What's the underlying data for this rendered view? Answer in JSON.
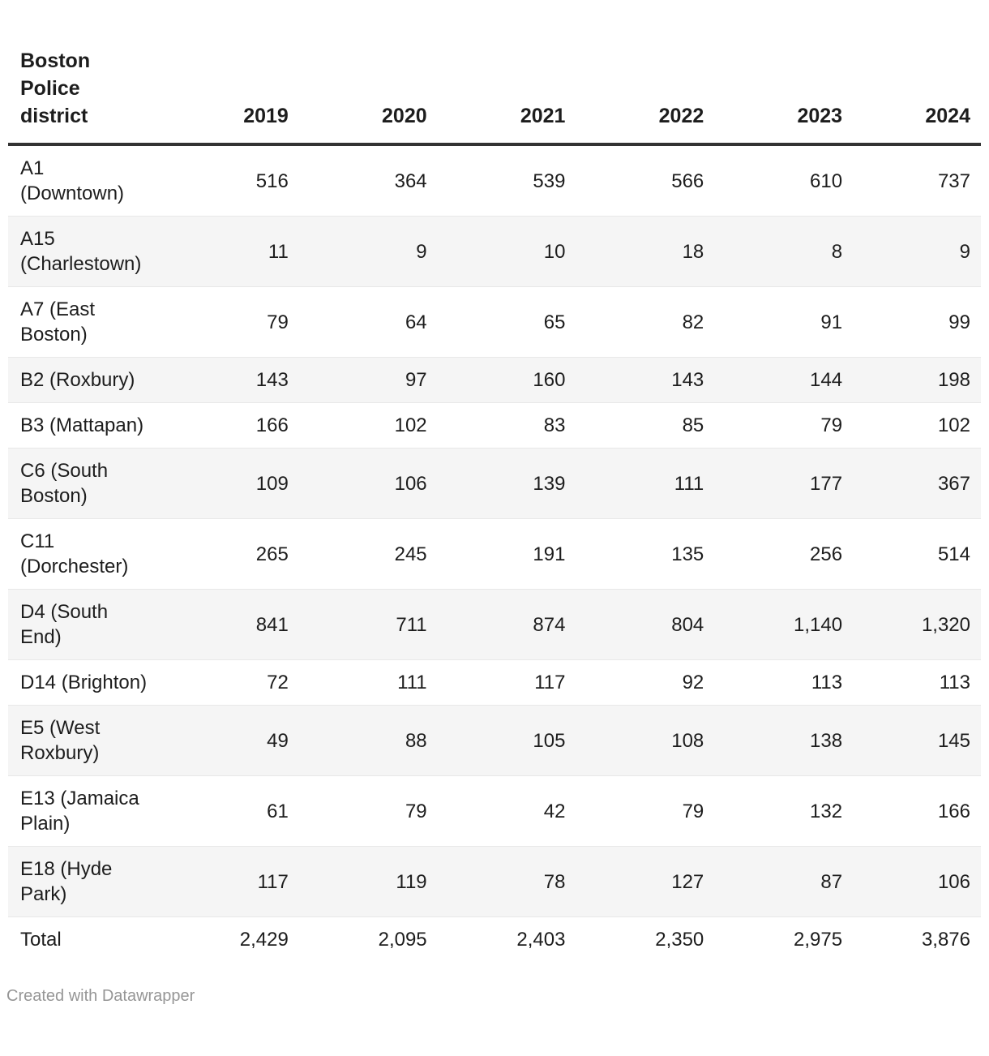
{
  "table": {
    "header": {
      "district_label": "Boston Police district",
      "years": [
        "2019",
        "2020",
        "2021",
        "2022",
        "2023",
        "2024"
      ]
    },
    "rows": [
      {
        "district": "A1 (Downtown)",
        "values": [
          "516",
          "364",
          "539",
          "566",
          "610",
          "737"
        ]
      },
      {
        "district": "A15 (Charlestown)",
        "values": [
          "11",
          "9",
          "10",
          "18",
          "8",
          "9"
        ]
      },
      {
        "district": "A7 (East Boston)",
        "values": [
          "79",
          "64",
          "65",
          "82",
          "91",
          "99"
        ]
      },
      {
        "district": "B2 (Roxbury)",
        "values": [
          "143",
          "97",
          "160",
          "143",
          "144",
          "198"
        ]
      },
      {
        "district": "B3 (Mattapan)",
        "values": [
          "166",
          "102",
          "83",
          "85",
          "79",
          "102"
        ]
      },
      {
        "district": "C6 (South Boston)",
        "values": [
          "109",
          "106",
          "139",
          "111",
          "177",
          "367"
        ]
      },
      {
        "district": "C11 (Dorchester)",
        "values": [
          "265",
          "245",
          "191",
          "135",
          "256",
          "514"
        ]
      },
      {
        "district": "D4 (South End)",
        "values": [
          "841",
          "711",
          "874",
          "804",
          "1,140",
          "1,320"
        ]
      },
      {
        "district": "D14 (Brighton)",
        "values": [
          "72",
          "111",
          "117",
          "92",
          "113",
          "113"
        ]
      },
      {
        "district": "E5 (West Roxbury)",
        "values": [
          "49",
          "88",
          "105",
          "108",
          "138",
          "145"
        ]
      },
      {
        "district": "E13 (Jamaica Plain)",
        "values": [
          "61",
          "79",
          "42",
          "79",
          "132",
          "166"
        ]
      },
      {
        "district": "E18 (Hyde Park)",
        "values": [
          "117",
          "119",
          "78",
          "127",
          "87",
          "106"
        ]
      },
      {
        "district": "Total",
        "values": [
          "2,429",
          "2,095",
          "2,403",
          "2,350",
          "2,975",
          "3,876"
        ]
      }
    ]
  },
  "footer": {
    "credit": "Created with Datawrapper"
  },
  "colors": {
    "text": "#1d1d1d",
    "header_rule": "#333333",
    "row_separator": "#e8e8e8",
    "stripe": "#f5f5f5",
    "credit_text": "#969696"
  },
  "chart_data": {
    "type": "table",
    "title": "",
    "columns": [
      "Boston Police district",
      "2019",
      "2020",
      "2021",
      "2022",
      "2023",
      "2024"
    ],
    "categories": [
      "A1 (Downtown)",
      "A15 (Charlestown)",
      "A7 (East Boston)",
      "B2 (Roxbury)",
      "B3 (Mattapan)",
      "C6 (South Boston)",
      "C11 (Dorchester)",
      "D4 (South End)",
      "D14 (Brighton)",
      "E5 (West Roxbury)",
      "E13 (Jamaica Plain)",
      "E18 (Hyde Park)",
      "Total"
    ],
    "series": [
      {
        "name": "2019",
        "values": [
          516,
          11,
          79,
          143,
          166,
          109,
          265,
          841,
          72,
          49,
          61,
          117,
          2429
        ]
      },
      {
        "name": "2020",
        "values": [
          364,
          9,
          64,
          97,
          102,
          106,
          245,
          711,
          111,
          88,
          79,
          119,
          2095
        ]
      },
      {
        "name": "2021",
        "values": [
          539,
          10,
          65,
          160,
          83,
          139,
          191,
          874,
          117,
          105,
          42,
          78,
          2403
        ]
      },
      {
        "name": "2022",
        "values": [
          566,
          18,
          82,
          143,
          85,
          111,
          135,
          804,
          92,
          108,
          79,
          127,
          2350
        ]
      },
      {
        "name": "2023",
        "values": [
          610,
          8,
          91,
          144,
          79,
          177,
          256,
          1140,
          113,
          138,
          132,
          87,
          2975
        ]
      },
      {
        "name": "2024",
        "values": [
          737,
          9,
          99,
          198,
          102,
          367,
          514,
          1320,
          113,
          145,
          166,
          106,
          3876
        ]
      }
    ],
    "layout_hints": {
      "striped_rows": true,
      "header_rule": true,
      "grid": false,
      "legend_position": "none"
    }
  }
}
